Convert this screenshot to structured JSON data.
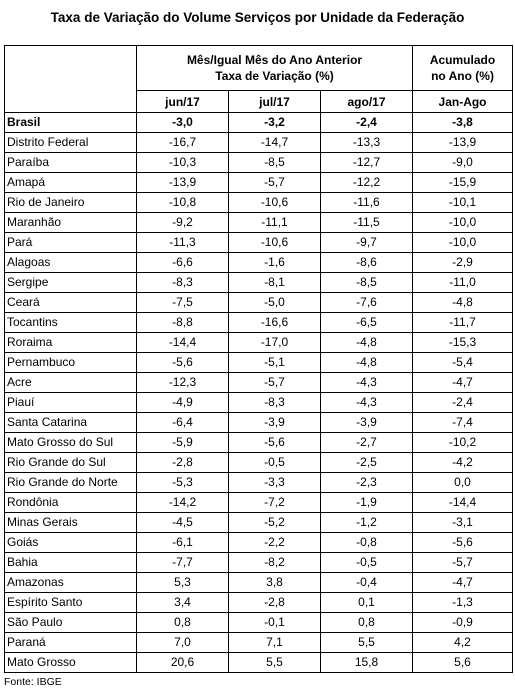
{
  "title": "Taxa de Variação do Volume Serviços por Unidade da Federação",
  "header": {
    "group1_line1": "Mês/Igual Mês do Ano Anterior",
    "group1_line2": "Taxa de Variação (%)",
    "group2_line1": "Acumulado",
    "group2_line2": "no Ano (%)",
    "columns": [
      "jun/17",
      "jul/17",
      "ago/17",
      "Jan-Ago"
    ]
  },
  "rows": [
    {
      "state": "Brasil",
      "jun": "-3,0",
      "jul": "-3,2",
      "ago": "-2,4",
      "acum": "-3,8"
    },
    {
      "state": "Distrito Federal",
      "jun": "-16,7",
      "jul": "-14,7",
      "ago": "-13,3",
      "acum": "-13,9"
    },
    {
      "state": "Paraíba",
      "jun": "-10,3",
      "jul": "-8,5",
      "ago": "-12,7",
      "acum": "-9,0"
    },
    {
      "state": "Amapá",
      "jun": "-13,9",
      "jul": "-5,7",
      "ago": "-12,2",
      "acum": "-15,9"
    },
    {
      "state": "Rio de Janeiro",
      "jun": "-10,8",
      "jul": "-10,6",
      "ago": "-11,6",
      "acum": "-10,1"
    },
    {
      "state": "Maranhão",
      "jun": "-9,2",
      "jul": "-11,1",
      "ago": "-11,5",
      "acum": "-10,0"
    },
    {
      "state": "Pará",
      "jun": "-11,3",
      "jul": "-10,6",
      "ago": "-9,7",
      "acum": "-10,0"
    },
    {
      "state": "Alagoas",
      "jun": "-6,6",
      "jul": "-1,6",
      "ago": "-8,6",
      "acum": "-2,9"
    },
    {
      "state": "Sergipe",
      "jun": "-8,3",
      "jul": "-8,1",
      "ago": "-8,5",
      "acum": "-11,0"
    },
    {
      "state": "Ceará",
      "jun": "-7,5",
      "jul": "-5,0",
      "ago": "-7,6",
      "acum": "-4,8"
    },
    {
      "state": "Tocantins",
      "jun": "-8,8",
      "jul": "-16,6",
      "ago": "-6,5",
      "acum": "-11,7"
    },
    {
      "state": "Roraima",
      "jun": "-14,4",
      "jul": "-17,0",
      "ago": "-4,8",
      "acum": "-15,3"
    },
    {
      "state": "Pernambuco",
      "jun": "-5,6",
      "jul": "-5,1",
      "ago": "-4,8",
      "acum": "-5,4"
    },
    {
      "state": "Acre",
      "jun": "-12,3",
      "jul": "-5,7",
      "ago": "-4,3",
      "acum": "-4,7"
    },
    {
      "state": "Piauí",
      "jun": "-4,9",
      "jul": "-8,3",
      "ago": "-4,3",
      "acum": "-2,4"
    },
    {
      "state": "Santa Catarina",
      "jun": "-6,4",
      "jul": "-3,9",
      "ago": "-3,9",
      "acum": "-7,4"
    },
    {
      "state": "Mato Grosso do Sul",
      "jun": "-5,9",
      "jul": "-5,6",
      "ago": "-2,7",
      "acum": "-10,2"
    },
    {
      "state": "Rio Grande do Sul",
      "jun": "-2,8",
      "jul": "-0,5",
      "ago": "-2,5",
      "acum": "-4,2"
    },
    {
      "state": "Rio Grande do Norte",
      "jun": "-5,3",
      "jul": "-3,3",
      "ago": "-2,3",
      "acum": "0,0"
    },
    {
      "state": "Rondônia",
      "jun": "-14,2",
      "jul": "-7,2",
      "ago": "-1,9",
      "acum": "-14,4"
    },
    {
      "state": "Minas Gerais",
      "jun": "-4,5",
      "jul": "-5,2",
      "ago": "-1,2",
      "acum": "-3,1"
    },
    {
      "state": "Goiás",
      "jun": "-6,1",
      "jul": "-2,2",
      "ago": "-0,8",
      "acum": "-5,6"
    },
    {
      "state": "Bahia",
      "jun": "-7,7",
      "jul": "-8,2",
      "ago": "-0,5",
      "acum": "-5,7"
    },
    {
      "state": "Amazonas",
      "jun": "5,3",
      "jul": "3,8",
      "ago": "-0,4",
      "acum": "-4,7"
    },
    {
      "state": "Espírito Santo",
      "jun": "3,4",
      "jul": "-2,8",
      "ago": "0,1",
      "acum": "-1,3"
    },
    {
      "state": "São Paulo",
      "jun": "0,8",
      "jul": "-0,1",
      "ago": "0,8",
      "acum": "-0,9"
    },
    {
      "state": "Paraná",
      "jun": "7,0",
      "jul": "7,1",
      "ago": "5,5",
      "acum": "4,2"
    },
    {
      "state": "Mato Grosso",
      "jun": "20,6",
      "jul": "5,5",
      "ago": "15,8",
      "acum": "5,6"
    }
  ],
  "source": "Fonte: IBGE"
}
